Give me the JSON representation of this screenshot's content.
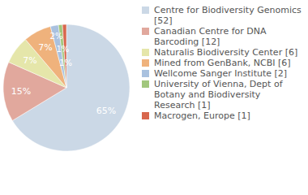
{
  "chart_data": {
    "type": "pie",
    "categories": [
      "Centre for Biodiversity Genomics [52]",
      "Canadian Centre for DNA Barcoding [12]",
      "Naturalis Biodiversity Center [6]",
      "Mined from GenBank, NCBI [6]",
      "Wellcome Sanger Institute [2]",
      "University of Vienna, Dept of Botany and Biodiversity Research [1]",
      "Macrogen, Europe [1]"
    ],
    "values": [
      65,
      15,
      7,
      7,
      2,
      1,
      1
    ],
    "value_labels": [
      "65%",
      "15%",
      "7%",
      "7%",
      "2%",
      "1%",
      "1%"
    ],
    "colors": [
      "#cbd8e6",
      "#e1a89d",
      "#e5e6aa",
      "#efb27c",
      "#a9c1df",
      "#a1c77d",
      "#d8674d"
    ],
    "data_labels": true,
    "legend": "right"
  }
}
